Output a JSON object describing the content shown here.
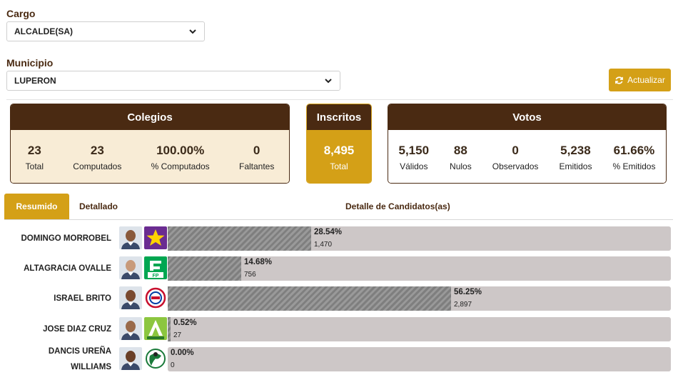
{
  "filters": {
    "cargo_label": "Cargo",
    "cargo_value": "ALCALDE(SA)",
    "municipio_label": "Municipio",
    "municipio_value": "LUPERON"
  },
  "actions": {
    "update_label": "Actualizar"
  },
  "colegios": {
    "title": "Colegios",
    "stats": [
      {
        "value": "23",
        "label": "Total"
      },
      {
        "value": "23",
        "label": "Computados"
      },
      {
        "value": "100.00%",
        "label": "% Computados"
      },
      {
        "value": "0",
        "label": "Faltantes"
      }
    ]
  },
  "inscritos": {
    "title": "Inscritos",
    "value": "8,495",
    "label": "Total"
  },
  "votos": {
    "title": "Votos",
    "stats": [
      {
        "value": "5,150",
        "label": "Válidos"
      },
      {
        "value": "88",
        "label": "Nulos"
      },
      {
        "value": "0",
        "label": "Observados"
      },
      {
        "value": "5,238",
        "label": "Emitidos"
      },
      {
        "value": "61.66%",
        "label": "% Emitidos"
      }
    ]
  },
  "tabs": {
    "resumen": "Resumido",
    "detallado": "Detallado",
    "section_title": "Detalle de Candidatos(as)"
  },
  "colors": {
    "brown": "#4a2a12",
    "gold": "#d4a017",
    "cream": "#f8ecd6",
    "track": "#cdc7c7"
  },
  "candidates": [
    {
      "name": "DOMINGO MORROBEL",
      "pct_label": "28.54%",
      "pct": 28.54,
      "votes": "1,470",
      "logo_icon": "star-party-logo",
      "logo_bg": "#6a2c91"
    },
    {
      "name": "ALTAGRACIA OVALLE",
      "pct_label": "14.68%",
      "pct": 14.68,
      "votes": "756",
      "logo_icon": "fp-party-logo",
      "logo_bg": "#00a651"
    },
    {
      "name": "ISRAEL BRITO",
      "pct_label": "56.25%",
      "pct": 56.25,
      "votes": "2,897",
      "logo_icon": "prm-party-logo",
      "logo_bg": "#ffffff"
    },
    {
      "name": "JOSE DIAZ CRUZ",
      "pct_label": "0.52%",
      "pct": 0.52,
      "votes": "27",
      "logo_icon": "alianza-pais-logo",
      "logo_bg": "#8cc63f"
    },
    {
      "name": "DANCIS UREÑA WILLIAMS",
      "pct_label": "0.00%",
      "pct": 0,
      "votes": "0",
      "logo_icon": "globe-party-logo",
      "logo_bg": "#ffffff"
    }
  ]
}
